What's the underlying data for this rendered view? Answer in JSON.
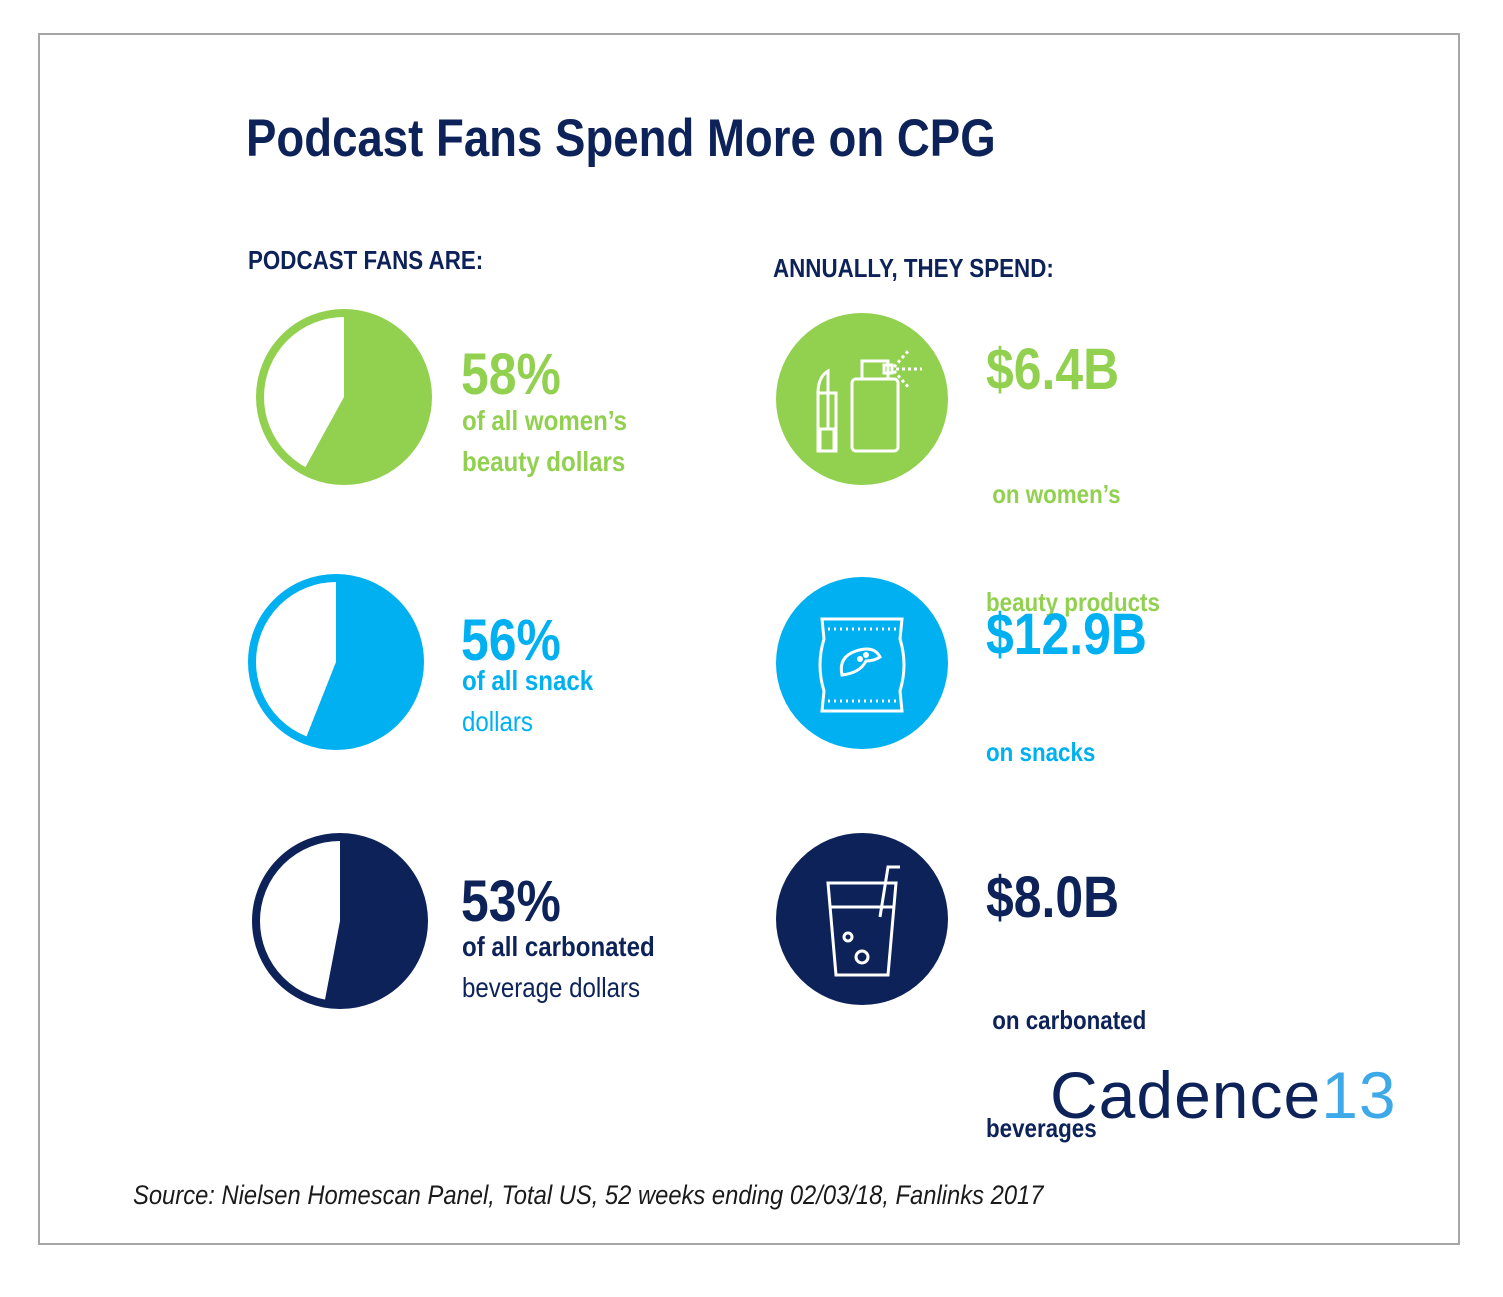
{
  "title": "Podcast Fans Spend More on CPG",
  "left_heading": "PODCAST FANS ARE:",
  "right_heading": "ANNUALLY, THEY SPEND:",
  "colors": {
    "green": "#92d050",
    "light_blue": "#00b0f0",
    "navy": "#0d2259",
    "logo_accent": "#3ea9e8"
  },
  "chart_data": {
    "type": "pie",
    "series": [
      {
        "value_label": "58%",
        "value": 58,
        "desc_lines": [
          "of all women’s",
          "beauty dollars"
        ],
        "color": "#92d050"
      },
      {
        "value_label": "56%",
        "value": 56,
        "desc_lines": [
          "of all snack",
          "dollars"
        ],
        "color": "#00b0f0"
      },
      {
        "value_label": "53%",
        "value": 53,
        "desc_lines": [
          "of all carbonated",
          "beverage dollars"
        ],
        "color": "#0d2259"
      }
    ]
  },
  "spend": [
    {
      "amount": "$6.4B",
      "lines": [
        " on women’s",
        "beauty products"
      ],
      "icon": "beauty-products-icon",
      "color": "#92d050"
    },
    {
      "amount": "$12.9B",
      "lines": [
        "on snacks"
      ],
      "icon": "snack-bag-icon",
      "color": "#00b0f0"
    },
    {
      "amount": "$8.0B",
      "lines": [
        " on carbonated",
        "beverages"
      ],
      "icon": "beverage-glass-icon",
      "color": "#0d2259"
    }
  ],
  "logo": {
    "word": "Cadence",
    "number": "13"
  },
  "source": "Source: Nielsen Homescan Panel, Total US, 52 weeks ending 02/03/18, Fanlinks 2017"
}
